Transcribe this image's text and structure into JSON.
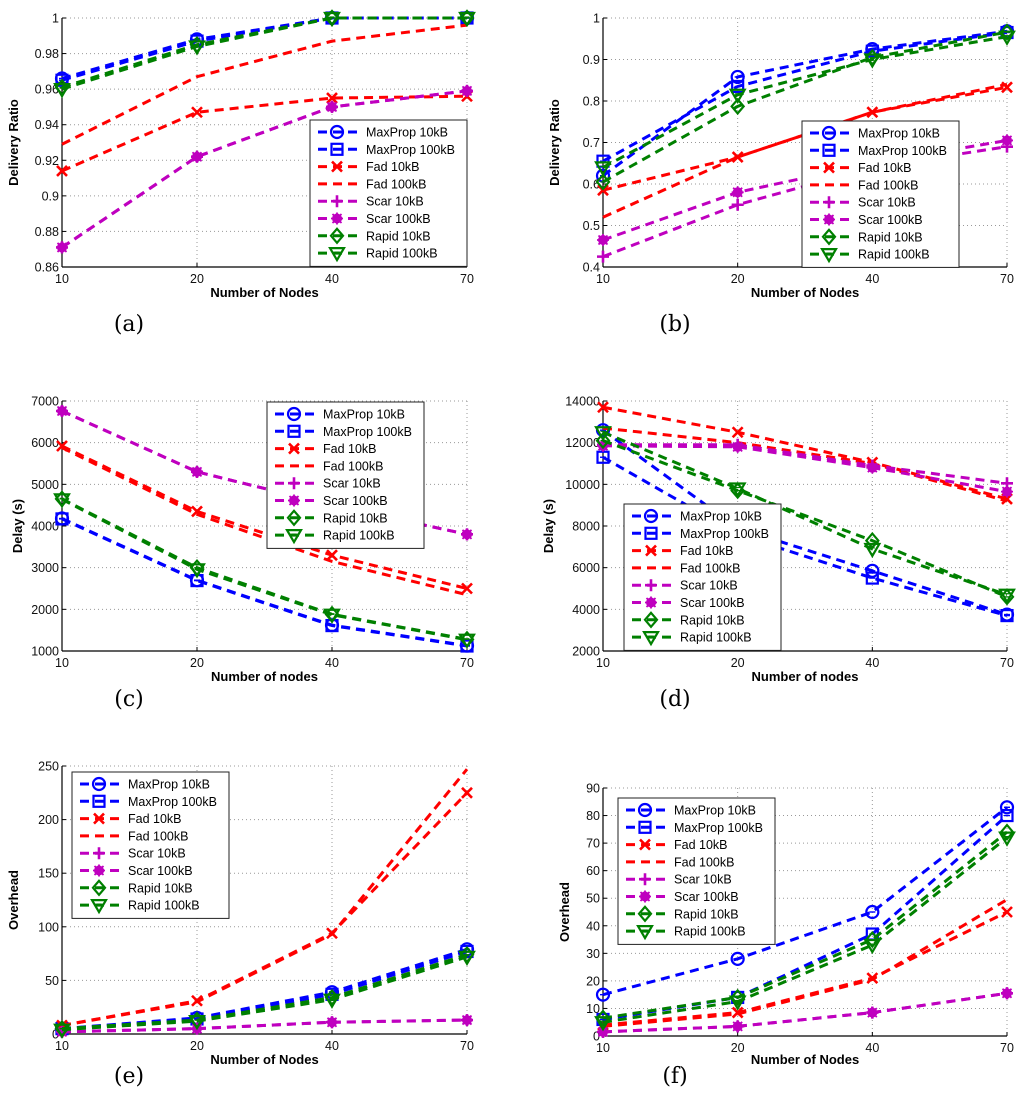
{
  "series_styles": [
    {
      "name": "MaxProp 10kB",
      "color": "#0000ff",
      "marker": "circle"
    },
    {
      "name": "MaxProp 100kB",
      "color": "#0000ff",
      "marker": "square"
    },
    {
      "name": "Fad 10kB",
      "color": "#ff0000",
      "marker": "x"
    },
    {
      "name": "Fad 100kB",
      "color": "#ff0000",
      "marker": "none"
    },
    {
      "name": "Scar 10kB",
      "color": "#bf00bf",
      "marker": "plus"
    },
    {
      "name": "Scar 100kB",
      "color": "#bf00bf",
      "marker": "asterisk"
    },
    {
      "name": "Rapid 10kB",
      "color": "#008000",
      "marker": "diamond"
    },
    {
      "name": "Rapid 100kB",
      "color": "#008000",
      "marker": "triangle-down"
    }
  ],
  "chart_data": [
    {
      "id": "a",
      "caption": "(a)",
      "type": "line",
      "xlabel": "Number of Nodes",
      "ylabel": "Delivery Ratio",
      "categories": [
        "10",
        "20",
        "40",
        "70"
      ],
      "ylim": [
        0.86,
        1.0
      ],
      "yticks": [
        0.86,
        0.88,
        0.9,
        0.92,
        0.94,
        0.96,
        0.98,
        1
      ],
      "ytick_labels": [
        "0.86",
        "0.88",
        "0.9",
        "0.92",
        "0.94",
        "0.96",
        "0.98",
        "1"
      ],
      "grid": true,
      "legend_position": "lower-right",
      "series": [
        {
          "name": "MaxProp 10kB",
          "values": [
            0.966,
            0.988,
            1.0,
            1.0
          ]
        },
        {
          "name": "MaxProp 100kB",
          "values": [
            0.965,
            0.987,
            1.0,
            1.0
          ]
        },
        {
          "name": "Fad 10kB",
          "values": [
            0.914,
            0.947,
            0.955,
            0.956
          ]
        },
        {
          "name": "Fad 100kB",
          "values": [
            0.929,
            0.967,
            0.987,
            0.996
          ]
        },
        {
          "name": "Scar 10kB",
          "values": [
            0.871,
            0.922,
            0.95,
            0.959
          ]
        },
        {
          "name": "Scar 100kB",
          "values": [
            0.871,
            0.922,
            0.95,
            0.959
          ]
        },
        {
          "name": "Rapid 10kB",
          "values": [
            0.961,
            0.985,
            1.0,
            1.0
          ]
        },
        {
          "name": "Rapid 100kB",
          "values": [
            0.96,
            0.984,
            1.0,
            1.0
          ]
        }
      ]
    },
    {
      "id": "b",
      "caption": "(b)",
      "type": "line",
      "xlabel": "Number of Nodes",
      "ylabel": "Delivery Ratio",
      "categories": [
        "10",
        "20",
        "40",
        "70"
      ],
      "ylim": [
        0.4,
        1.0
      ],
      "yticks": [
        0.4,
        0.5,
        0.6,
        0.7,
        0.8,
        0.9,
        1
      ],
      "ytick_labels": [
        "0.4",
        "0.5",
        "0.6",
        "0.7",
        "0.8",
        "0.9",
        "1"
      ],
      "grid": true,
      "legend_position": "lower-right",
      "series": [
        {
          "name": "MaxProp 10kB",
          "values": [
            0.62,
            0.858,
            0.925,
            0.968
          ]
        },
        {
          "name": "MaxProp 100kB",
          "values": [
            0.655,
            0.835,
            0.92,
            0.965
          ]
        },
        {
          "name": "Fad 10kB",
          "values": [
            0.585,
            0.665,
            0.773,
            0.833
          ]
        },
        {
          "name": "Fad 100kB",
          "values": [
            0.52,
            0.665,
            0.773,
            0.84
          ]
        },
        {
          "name": "Scar 10kB",
          "values": [
            0.425,
            0.55,
            0.64,
            0.69
          ]
        },
        {
          "name": "Scar 100kB",
          "values": [
            0.465,
            0.58,
            0.65,
            0.705
          ]
        },
        {
          "name": "Rapid 10kB",
          "values": [
            0.605,
            0.787,
            0.905,
            0.966
          ]
        },
        {
          "name": "Rapid 100kB",
          "values": [
            0.64,
            0.815,
            0.9,
            0.955
          ]
        }
      ]
    },
    {
      "id": "c",
      "caption": "(c)",
      "type": "line",
      "xlabel": "Number of nodes",
      "ylabel": "Delay (s)",
      "categories": [
        "10",
        "20",
        "40",
        "70"
      ],
      "ylim": [
        1000,
        7000
      ],
      "yticks": [
        1000,
        2000,
        3000,
        4000,
        5000,
        6000,
        7000
      ],
      "ytick_labels": [
        "1000",
        "2000",
        "3000",
        "4000",
        "5000",
        "6000",
        "7000"
      ],
      "grid": true,
      "legend_position": "top-right",
      "series": [
        {
          "name": "MaxProp 10kB",
          "values": [
            4180,
            2700,
            1620,
            1130
          ]
        },
        {
          "name": "MaxProp 100kB",
          "values": [
            4170,
            2690,
            1610,
            1120
          ]
        },
        {
          "name": "Fad 10kB",
          "values": [
            5920,
            4350,
            3300,
            2500
          ]
        },
        {
          "name": "Fad 100kB",
          "values": [
            5880,
            4280,
            3150,
            2350
          ]
        },
        {
          "name": "Scar 10kB",
          "values": [
            6760,
            5300,
            4500,
            3800
          ]
        },
        {
          "name": "Scar 100kB",
          "values": [
            6760,
            5300,
            4500,
            3800
          ]
        },
        {
          "name": "Rapid 10kB",
          "values": [
            4650,
            3000,
            1880,
            1280
          ]
        },
        {
          "name": "Rapid 100kB",
          "values": [
            4640,
            2960,
            1870,
            1270
          ]
        }
      ]
    },
    {
      "id": "d",
      "caption": "(d)",
      "type": "line",
      "xlabel": "Number of nodes",
      "ylabel": "Delay (s)",
      "categories": [
        "10",
        "20",
        "40",
        "70"
      ],
      "ylim": [
        2000,
        14000
      ],
      "yticks": [
        2000,
        4000,
        6000,
        8000,
        10000,
        12000,
        14000
      ],
      "ytick_labels": [
        "2000",
        "4000",
        "6000",
        "8000",
        "10000",
        "12000",
        "14000"
      ],
      "grid": true,
      "legend_position": "lower-left",
      "series": [
        {
          "name": "MaxProp 10kB",
          "values": [
            12600,
            7900,
            5850,
            3750
          ]
        },
        {
          "name": "MaxProp 100kB",
          "values": [
            11300,
            7600,
            5500,
            3700
          ]
        },
        {
          "name": "Fad 10kB",
          "values": [
            13700,
            12500,
            11050,
            9300
          ]
        },
        {
          "name": "Fad 100kB",
          "values": [
            12700,
            12000,
            11000,
            9200
          ]
        },
        {
          "name": "Scar 10kB",
          "values": [
            11900,
            11900,
            10900,
            10050
          ]
        },
        {
          "name": "Scar 100kB",
          "values": [
            11850,
            11800,
            10800,
            9650
          ]
        },
        {
          "name": "Rapid 10kB",
          "values": [
            12100,
            9700,
            7300,
            4600
          ]
        },
        {
          "name": "Rapid 100kB",
          "values": [
            12500,
            9800,
            6900,
            4700
          ]
        }
      ]
    },
    {
      "id": "e",
      "caption": "(e)",
      "type": "line",
      "xlabel": "Number of Nodes",
      "ylabel": "Overhead",
      "categories": [
        "10",
        "20",
        "40",
        "70"
      ],
      "ylim": [
        0,
        250
      ],
      "yticks": [
        0,
        50,
        100,
        150,
        200,
        250
      ],
      "ytick_labels": [
        "0",
        "50",
        "100",
        "150",
        "200",
        "250"
      ],
      "grid": true,
      "legend_position": "top-left",
      "series": [
        {
          "name": "MaxProp 10kB",
          "values": [
            5,
            15,
            39,
            79
          ]
        },
        {
          "name": "MaxProp 100kB",
          "values": [
            5,
            14,
            37,
            77
          ]
        },
        {
          "name": "Fad 10kB",
          "values": [
            8,
            31,
            94,
            225
          ]
        },
        {
          "name": "Fad 100kB",
          "values": [
            8,
            30,
            93,
            247
          ]
        },
        {
          "name": "Scar 10kB",
          "values": [
            2,
            5,
            11,
            13
          ]
        },
        {
          "name": "Scar 100kB",
          "values": [
            2,
            5,
            11,
            13
          ]
        },
        {
          "name": "Rapid 10kB",
          "values": [
            5,
            13,
            34,
            74
          ]
        },
        {
          "name": "Rapid 100kB",
          "values": [
            4,
            12,
            32,
            72
          ]
        }
      ]
    },
    {
      "id": "f",
      "caption": "(f)",
      "type": "line",
      "xlabel": "Number of Nodes",
      "ylabel": "Overhead",
      "categories": [
        "10",
        "20",
        "40",
        "70"
      ],
      "ylim": [
        0,
        90
      ],
      "yticks": [
        0,
        10,
        20,
        30,
        40,
        50,
        60,
        70,
        80,
        90
      ],
      "ytick_labels": [
        "0",
        "10",
        "20",
        "30",
        "40",
        "50",
        "60",
        "70",
        "80",
        "90"
      ],
      "grid": true,
      "legend_position": "top-left",
      "series": [
        {
          "name": "MaxProp 10kB",
          "values": [
            15,
            28,
            45,
            83
          ]
        },
        {
          "name": "MaxProp 100kB",
          "values": [
            6,
            14,
            37,
            80
          ]
        },
        {
          "name": "Fad 10kB",
          "values": [
            4,
            8.5,
            21,
            45
          ]
        },
        {
          "name": "Fad 100kB",
          "values": [
            3.5,
            8,
            20.5,
            49.5
          ]
        },
        {
          "name": "Scar 10kB",
          "values": [
            1.5,
            3.5,
            8.5,
            15.5
          ]
        },
        {
          "name": "Scar 100kB",
          "values": [
            1.5,
            3.5,
            8.5,
            15.5
          ]
        },
        {
          "name": "Rapid 10kB",
          "values": [
            6.5,
            14,
            35,
            74
          ]
        },
        {
          "name": "Rapid 100kB",
          "values": [
            5,
            12.5,
            33,
            72
          ]
        }
      ]
    }
  ]
}
